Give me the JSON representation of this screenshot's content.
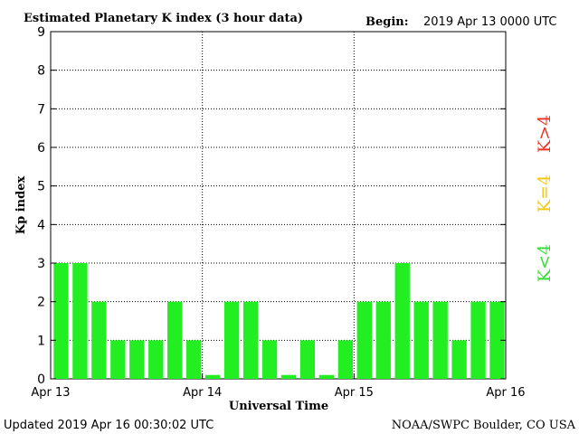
{
  "chart_data": {
    "type": "bar",
    "title": "Estimated Planetary K index (3 hour data)",
    "begin_label": "Begin:",
    "begin_value": "2019 Apr 13 0000 UTC",
    "xlabel": "Universal Time",
    "ylabel": "Kp index",
    "ylim": [
      0,
      9
    ],
    "yticks": [
      "0",
      "1",
      "2",
      "3",
      "4",
      "5",
      "6",
      "7",
      "8",
      "9"
    ],
    "xticks": [
      "Apr 13",
      "Apr 14",
      "Apr 15",
      "Apr 16"
    ],
    "values": [
      3,
      3,
      2,
      1,
      1,
      1,
      2,
      1,
      0.1,
      2,
      2,
      1,
      0.1,
      1,
      0.1,
      1,
      2,
      2,
      3,
      2,
      2,
      1,
      2,
      2
    ],
    "bar_color": "#22ee22",
    "grid": true,
    "legend": [
      {
        "label": "K<4",
        "color": "#33dd33"
      },
      {
        "label": "K=4",
        "color": "#f2c811"
      },
      {
        "label": "K>4",
        "color": "#ee3322"
      }
    ]
  },
  "footer": {
    "updated": "Updated 2019 Apr 16 00:30:02 UTC",
    "source": "NOAA/SWPC Boulder, CO USA"
  }
}
